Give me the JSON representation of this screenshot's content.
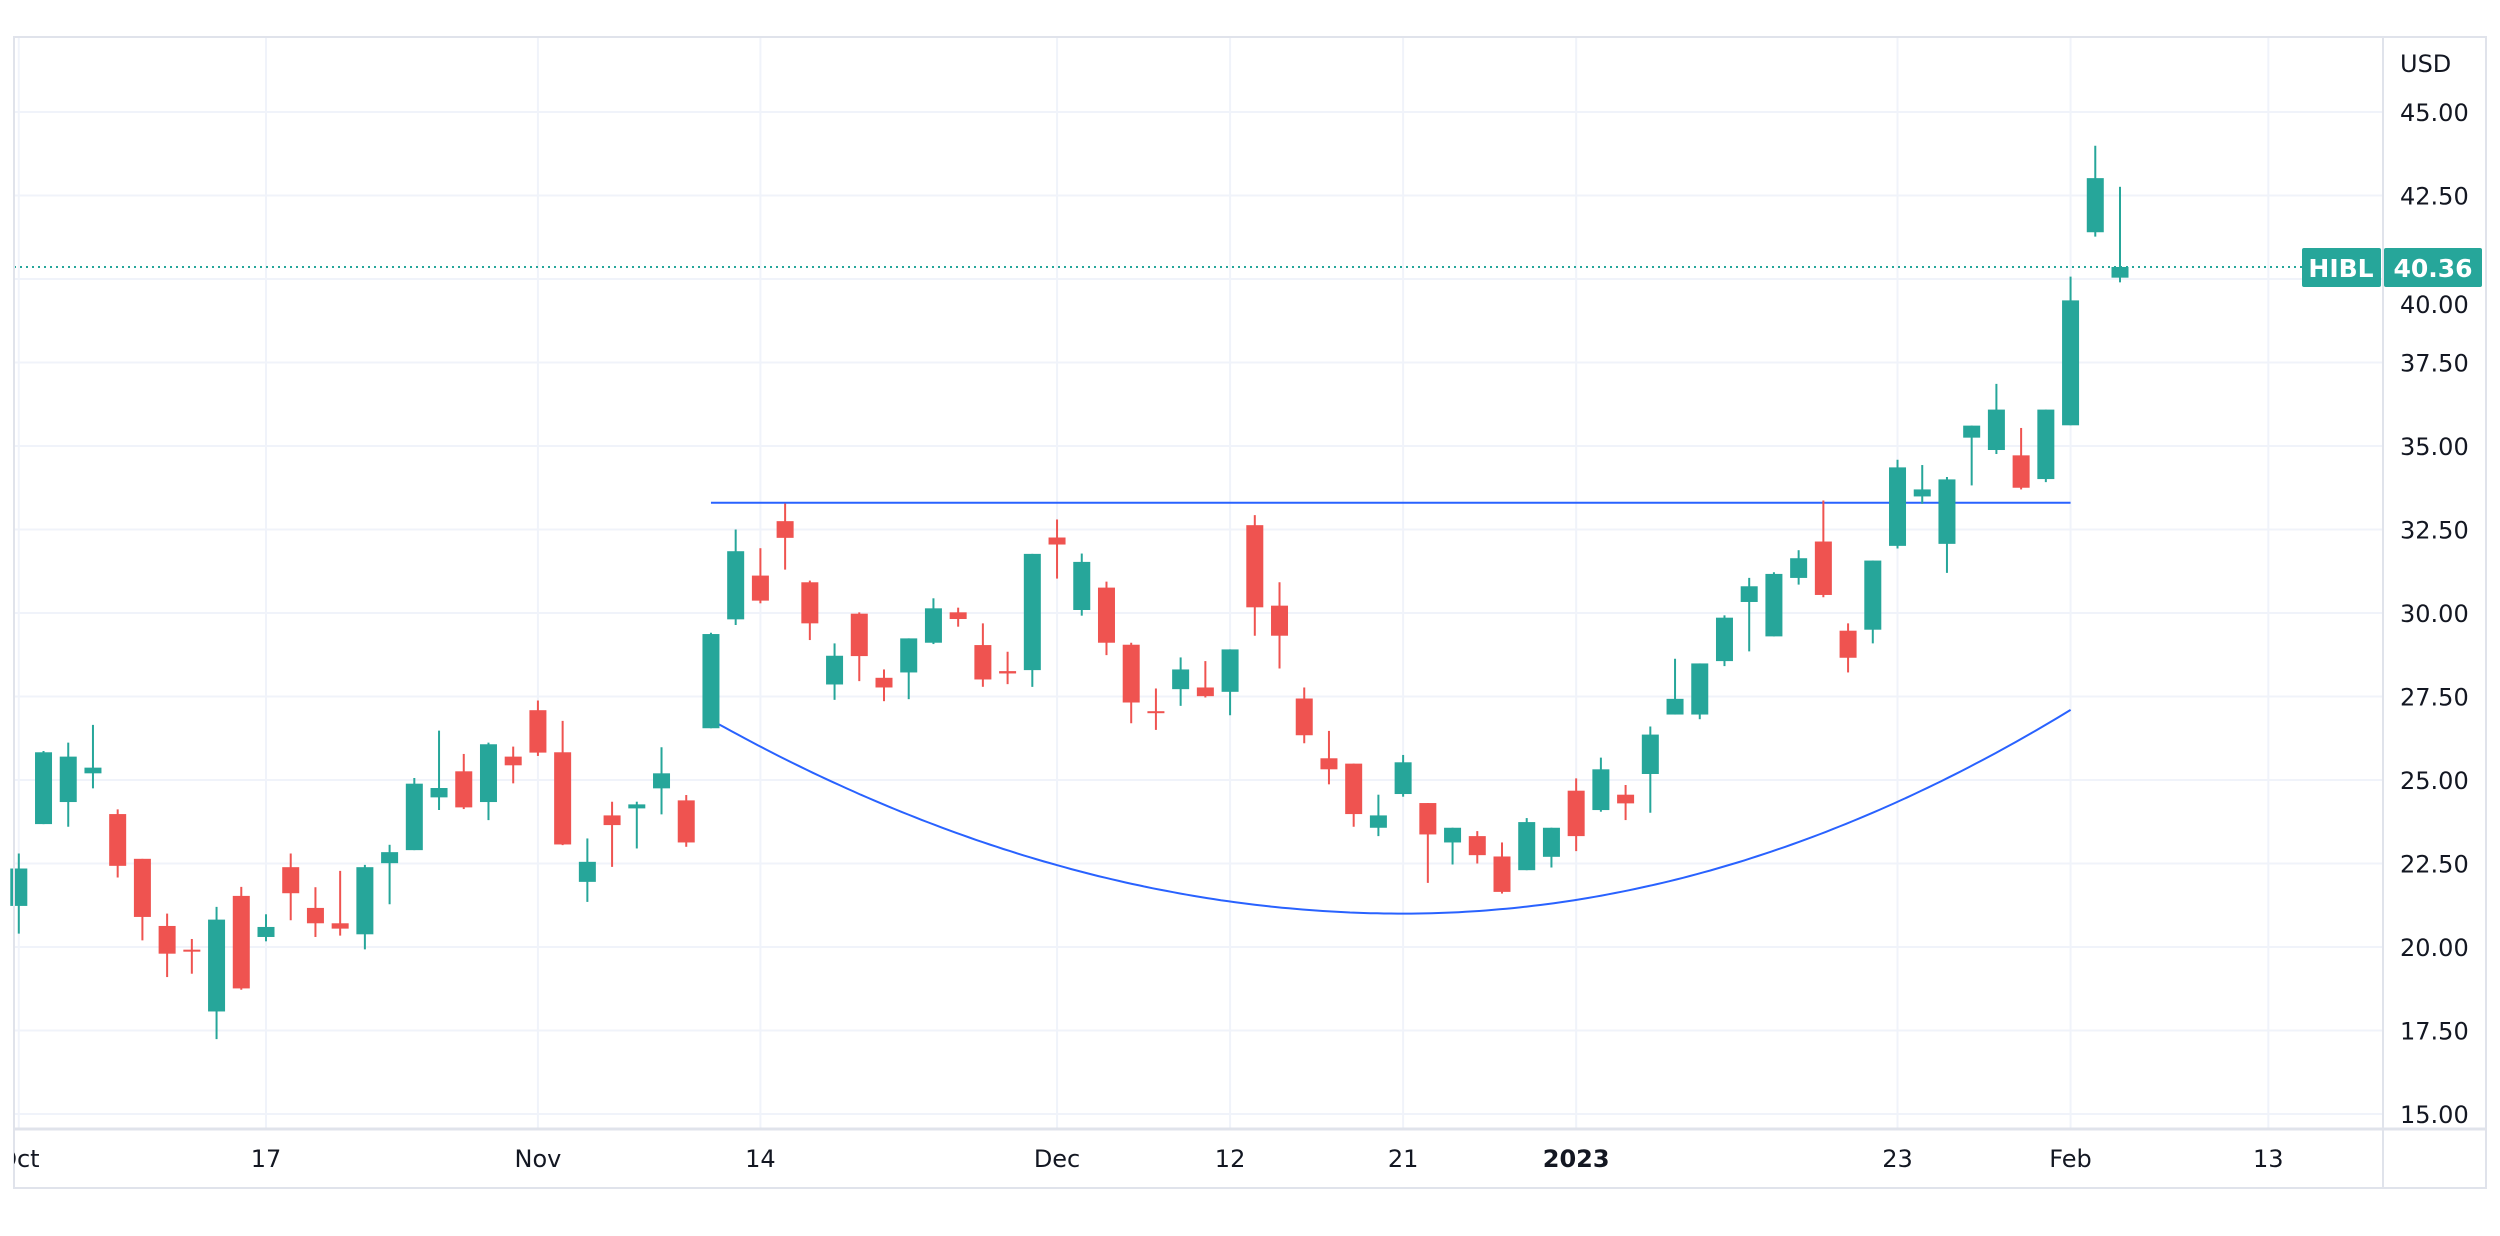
{
  "chart_data": {
    "type": "candlestick",
    "symbol": "HIBL",
    "currency": "USD",
    "last_price": "40.36",
    "ylim": [
      15,
      45
    ],
    "y_ticks": [
      "15.00",
      "17.50",
      "20.00",
      "22.50",
      "25.00",
      "27.50",
      "30.00",
      "32.50",
      "35.00",
      "37.50",
      "40.00",
      "42.50",
      "45.00"
    ],
    "grid": true,
    "x_ticks": [
      {
        "label": "Oct",
        "date": "2022-10-03",
        "bold": false
      },
      {
        "label": "17",
        "date": "2022-10-17",
        "bold": false
      },
      {
        "label": "Nov",
        "date": "2022-11-01",
        "bold": false
      },
      {
        "label": "14",
        "date": "2022-11-14",
        "bold": false
      },
      {
        "label": "Dec",
        "date": "2022-12-01",
        "bold": false
      },
      {
        "label": "12",
        "date": "2022-12-12",
        "bold": false
      },
      {
        "label": "21",
        "date": "2022-12-21",
        "bold": false
      },
      {
        "label": "2023",
        "date": "2023-01-03",
        "bold": true
      },
      {
        "label": "23",
        "date": "2023-01-23",
        "bold": false
      },
      {
        "label": "Feb",
        "date": "2023-02-01",
        "bold": false
      },
      {
        "label": "13",
        "date": "2023-02-13",
        "bold": false
      }
    ],
    "colors": {
      "up": "#26a69a",
      "down": "#ef5350",
      "drawing": "#2962ff",
      "grid": "#f0f3fa",
      "border": "#e0e3eb",
      "text": "#131722"
    },
    "columns": [
      "date",
      "open",
      "high",
      "low",
      "close"
    ],
    "candles": [
      [
        "2022-10-03",
        21.23,
        22.8,
        20.4,
        22.35
      ],
      [
        "2022-10-04",
        23.68,
        25.87,
        23.68,
        25.83
      ],
      [
        "2022-10-05",
        24.34,
        26.12,
        23.6,
        25.7
      ],
      [
        "2022-10-06",
        25.2,
        26.65,
        24.75,
        25.37
      ],
      [
        "2022-10-07",
        23.98,
        24.12,
        22.08,
        22.43
      ],
      [
        "2022-10-10",
        22.64,
        22.64,
        20.2,
        20.9
      ],
      [
        "2022-10-11",
        20.63,
        21.0,
        19.1,
        19.8
      ],
      [
        "2022-10-12",
        19.92,
        20.24,
        19.2,
        19.88
      ],
      [
        "2022-10-13",
        18.07,
        21.2,
        17.24,
        20.82
      ],
      [
        "2022-10-14",
        21.53,
        21.8,
        18.72,
        18.76
      ],
      [
        "2022-10-17",
        20.3,
        20.98,
        20.17,
        20.6
      ],
      [
        "2022-10-18",
        22.39,
        22.8,
        20.8,
        21.61
      ],
      [
        "2022-10-19",
        21.17,
        21.79,
        20.3,
        20.71
      ],
      [
        "2022-10-20",
        20.71,
        22.28,
        20.34,
        20.55
      ],
      [
        "2022-10-21",
        20.38,
        22.46,
        19.93,
        22.39
      ],
      [
        "2022-10-24",
        22.51,
        23.06,
        21.28,
        22.84
      ],
      [
        "2022-10-25",
        22.9,
        25.06,
        22.9,
        24.89
      ],
      [
        "2022-10-26",
        24.48,
        26.48,
        24.1,
        24.76
      ],
      [
        "2022-10-27",
        25.26,
        25.78,
        24.13,
        24.18
      ],
      [
        "2022-10-28",
        24.34,
        26.12,
        23.8,
        26.07
      ],
      [
        "2022-10-31",
        25.7,
        26.0,
        24.9,
        25.44
      ],
      [
        "2022-11-01",
        27.09,
        27.38,
        25.72,
        25.82
      ],
      [
        "2022-11-02",
        25.83,
        26.77,
        23.05,
        23.07
      ],
      [
        "2022-11-03",
        21.95,
        23.25,
        21.35,
        22.55
      ],
      [
        "2022-11-04",
        23.94,
        24.35,
        22.4,
        23.65
      ],
      [
        "2022-11-07",
        24.15,
        24.35,
        22.95,
        24.27
      ],
      [
        "2022-11-08",
        24.75,
        25.98,
        23.97,
        25.2
      ],
      [
        "2022-11-09",
        24.39,
        24.55,
        23.0,
        23.13
      ],
      [
        "2022-11-10",
        26.55,
        29.41,
        26.55,
        29.37
      ],
      [
        "2022-11-11",
        29.81,
        32.5,
        29.64,
        31.85
      ],
      [
        "2022-11-14",
        31.12,
        31.94,
        30.29,
        30.37
      ],
      [
        "2022-11-15",
        32.75,
        33.28,
        31.3,
        32.25
      ],
      [
        "2022-11-16",
        30.92,
        30.97,
        29.19,
        29.69
      ],
      [
        "2022-11-17",
        27.86,
        29.09,
        27.4,
        28.72
      ],
      [
        "2022-11-18",
        29.98,
        30.02,
        27.96,
        28.71
      ],
      [
        "2022-11-21",
        28.06,
        28.31,
        27.36,
        27.77
      ],
      [
        "2022-11-22",
        28.22,
        29.24,
        27.42,
        29.24
      ],
      [
        "2022-11-23",
        29.11,
        30.44,
        29.07,
        30.14
      ],
      [
        "2022-11-25",
        30.02,
        30.16,
        29.59,
        29.82
      ],
      [
        "2022-11-28",
        29.04,
        29.69,
        27.79,
        28.01
      ],
      [
        "2022-11-29",
        28.26,
        28.84,
        27.87,
        28.19
      ],
      [
        "2022-11-30",
        28.29,
        31.77,
        27.79,
        31.77
      ],
      [
        "2022-12-01",
        32.26,
        32.8,
        31.03,
        32.05
      ],
      [
        "2022-12-02",
        30.09,
        31.78,
        29.92,
        31.53
      ],
      [
        "2022-12-05",
        30.76,
        30.94,
        28.74,
        29.11
      ],
      [
        "2022-12-06",
        29.05,
        29.11,
        26.7,
        27.32
      ],
      [
        "2022-12-07",
        27.06,
        27.74,
        26.5,
        27.0
      ],
      [
        "2022-12-08",
        27.72,
        28.67,
        27.22,
        28.31
      ],
      [
        "2022-12-09",
        27.77,
        28.56,
        27.47,
        27.51
      ],
      [
        "2022-12-12",
        27.64,
        28.91,
        26.94,
        28.91
      ],
      [
        "2022-12-13",
        32.63,
        32.93,
        29.32,
        30.17
      ],
      [
        "2022-12-14",
        30.22,
        30.92,
        28.34,
        29.32
      ],
      [
        "2022-12-15",
        27.44,
        27.77,
        26.1,
        26.34
      ],
      [
        "2022-12-16",
        25.65,
        26.47,
        24.87,
        25.32
      ],
      [
        "2022-12-19",
        25.49,
        25.49,
        23.6,
        23.98
      ],
      [
        "2022-12-20",
        23.57,
        24.56,
        23.32,
        23.94
      ],
      [
        "2022-12-21",
        24.58,
        25.75,
        24.5,
        25.53
      ],
      [
        "2022-12-22",
        24.31,
        24.31,
        21.92,
        23.37
      ],
      [
        "2022-12-23",
        23.13,
        23.57,
        22.47,
        23.57
      ],
      [
        "2022-12-27",
        23.32,
        23.47,
        22.5,
        22.75
      ],
      [
        "2022-12-28",
        22.71,
        23.13,
        21.6,
        21.65
      ],
      [
        "2022-12-29",
        22.3,
        23.86,
        22.3,
        23.74
      ],
      [
        "2022-12-30",
        22.7,
        23.57,
        22.38,
        23.57
      ],
      [
        "2023-01-03",
        24.68,
        25.05,
        22.87,
        23.32
      ],
      [
        "2023-01-04",
        24.1,
        25.67,
        24.05,
        25.32
      ],
      [
        "2023-01-05",
        24.56,
        24.85,
        23.8,
        24.3
      ],
      [
        "2023-01-06",
        25.18,
        26.6,
        24.02,
        26.36
      ],
      [
        "2023-01-09",
        26.96,
        28.63,
        26.96,
        27.43
      ],
      [
        "2023-01-10",
        26.96,
        28.49,
        26.82,
        28.49
      ],
      [
        "2023-01-11",
        28.56,
        29.93,
        28.41,
        29.86
      ],
      [
        "2023-01-12",
        30.33,
        31.05,
        28.85,
        30.8
      ],
      [
        "2023-01-13",
        29.3,
        31.22,
        29.3,
        31.17
      ],
      [
        "2023-01-17",
        31.05,
        31.88,
        30.85,
        31.64
      ],
      [
        "2023-01-18",
        32.14,
        33.37,
        30.47,
        30.54
      ],
      [
        "2023-01-19",
        29.47,
        29.69,
        28.22,
        28.66
      ],
      [
        "2023-01-20",
        29.5,
        31.57,
        29.09,
        31.57
      ],
      [
        "2023-01-23",
        32.01,
        34.59,
        31.93,
        34.36
      ],
      [
        "2023-01-24",
        33.49,
        34.43,
        33.27,
        33.7
      ],
      [
        "2023-01-25",
        32.07,
        34.07,
        31.2,
        34.0
      ],
      [
        "2023-01-26",
        35.25,
        35.61,
        33.82,
        35.61
      ],
      [
        "2023-01-27",
        34.88,
        36.86,
        34.76,
        36.09
      ],
      [
        "2023-01-30",
        34.72,
        35.54,
        33.7,
        33.75
      ],
      [
        "2023-01-31",
        34.01,
        36.09,
        33.92,
        36.09
      ],
      [
        "2023-02-01",
        35.62,
        40.07,
        35.62,
        39.36
      ],
      [
        "2023-02-02",
        41.4,
        43.99,
        41.27,
        43.02
      ],
      [
        "2023-02-03",
        40.04,
        42.76,
        39.9,
        40.36
      ]
    ],
    "drawings": {
      "resistance_line": {
        "from": "2022-11-10",
        "to": "2023-02-01",
        "value": 33.3
      },
      "cup_curve": {
        "start": [
          "2022-11-10",
          26.8
        ],
        "bottom": [
          "2022-12-21",
          21.0
        ],
        "end": [
          "2023-02-01",
          27.1
        ]
      }
    }
  }
}
